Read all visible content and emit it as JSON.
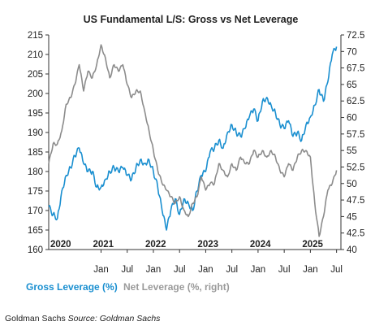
{
  "chart_data": {
    "type": "line",
    "title": "US Fundamental L/S: Gross vs Net Leverage",
    "left_axis": {
      "min": 160,
      "max": 215,
      "ticks": [
        160,
        165,
        170,
        175,
        180,
        185,
        190,
        195,
        200,
        205,
        210,
        215
      ]
    },
    "right_axis": {
      "min": 40,
      "max": 72.5,
      "ticks": [
        "40",
        "42.5",
        "45",
        "47.5",
        "50",
        "52.5",
        "55",
        "57.5",
        "60",
        "62.5",
        "65",
        "67.5",
        "70",
        "72.5"
      ]
    },
    "x_range": [
      "2020-01",
      "2025-08"
    ],
    "month_ticks": [
      "Jan",
      "Jul",
      "Jan",
      "Jul",
      "Jan",
      "Jul",
      "Jan",
      "Jul",
      "Jan",
      "Jul"
    ],
    "year_labels": [
      "2020",
      "2021",
      "2022",
      "2023",
      "2024",
      "2025"
    ],
    "colors": {
      "gross": "#1a8fd0",
      "net": "#8c8c8c",
      "axis": "#333333"
    },
    "legend_position": "bottom-left",
    "series": [
      {
        "name": "Gross Leverage (%)",
        "axis": "left",
        "x": [
          "2020-01",
          "2020-02",
          "2020-03",
          "2020-04",
          "2020-05",
          "2020-06",
          "2020-07",
          "2020-08",
          "2020-09",
          "2020-10",
          "2020-11",
          "2020-12",
          "2021-01",
          "2021-02",
          "2021-03",
          "2021-04",
          "2021-05",
          "2021-06",
          "2021-07",
          "2021-08",
          "2021-09",
          "2021-10",
          "2021-11",
          "2021-12",
          "2022-01",
          "2022-02",
          "2022-03",
          "2022-04",
          "2022-05",
          "2022-06",
          "2022-07",
          "2022-08",
          "2022-09",
          "2022-10",
          "2022-11",
          "2022-12",
          "2023-01",
          "2023-02",
          "2023-03",
          "2023-04",
          "2023-05",
          "2023-06",
          "2023-07",
          "2023-08",
          "2023-09",
          "2023-10",
          "2023-11",
          "2023-12",
          "2024-01",
          "2024-02",
          "2024-03",
          "2024-04",
          "2024-05",
          "2024-06",
          "2024-07",
          "2024-08",
          "2024-09",
          "2024-10",
          "2024-11",
          "2024-12",
          "2025-01",
          "2025-02",
          "2025-03",
          "2025-04",
          "2025-05",
          "2025-06",
          "2025-07"
        ],
        "values": [
          171,
          169,
          168,
          175,
          179,
          181,
          184,
          186,
          182,
          180,
          180,
          176,
          176,
          178,
          180,
          181,
          180,
          181,
          179,
          178,
          181,
          183,
          182,
          183,
          180,
          176,
          170,
          165,
          170,
          173,
          169,
          173,
          172,
          170,
          175,
          179,
          180,
          185,
          186,
          188,
          186,
          190,
          192,
          190,
          189,
          191,
          194,
          196,
          193,
          198,
          199,
          197,
          195,
          192,
          191,
          193,
          189,
          190,
          188,
          192,
          194,
          197,
          201,
          198,
          203,
          210,
          212
        ]
      },
      {
        "name": "Net Leverage (%, right)",
        "axis": "right",
        "x": [
          "2020-01",
          "2020-02",
          "2020-03",
          "2020-04",
          "2020-05",
          "2020-06",
          "2020-07",
          "2020-08",
          "2020-09",
          "2020-10",
          "2020-11",
          "2020-12",
          "2021-01",
          "2021-02",
          "2021-03",
          "2021-04",
          "2021-05",
          "2021-06",
          "2021-07",
          "2021-08",
          "2021-09",
          "2021-10",
          "2021-11",
          "2021-12",
          "2022-01",
          "2022-02",
          "2022-03",
          "2022-04",
          "2022-05",
          "2022-06",
          "2022-07",
          "2022-08",
          "2022-09",
          "2022-10",
          "2022-11",
          "2022-12",
          "2023-01",
          "2023-02",
          "2023-03",
          "2023-04",
          "2023-05",
          "2023-06",
          "2023-07",
          "2023-08",
          "2023-09",
          "2023-10",
          "2023-11",
          "2023-12",
          "2024-01",
          "2024-02",
          "2024-03",
          "2024-04",
          "2024-05",
          "2024-06",
          "2024-07",
          "2024-08",
          "2024-09",
          "2024-10",
          "2024-11",
          "2024-12",
          "2025-01",
          "2025-02",
          "2025-03",
          "2025-04",
          "2025-05",
          "2025-06",
          "2025-07"
        ],
        "values": [
          53,
          56,
          56,
          58,
          62,
          63,
          65,
          68,
          64,
          67,
          66,
          68,
          71,
          69,
          66,
          68,
          67,
          68,
          65,
          63,
          64,
          64,
          61,
          58,
          55,
          52,
          50,
          49,
          48,
          47,
          48,
          46,
          45,
          47,
          48,
          51,
          49,
          50,
          50,
          53,
          52,
          51,
          53,
          52,
          54,
          53,
          53,
          55,
          54,
          55,
          54,
          55,
          54,
          52,
          51,
          53,
          52,
          54,
          55,
          55,
          54,
          47,
          42,
          45,
          49,
          50,
          52
        ]
      }
    ]
  },
  "caption": {
    "prefix": "Goldman Sachs ",
    "source": "Source: Goldman Sachs"
  }
}
